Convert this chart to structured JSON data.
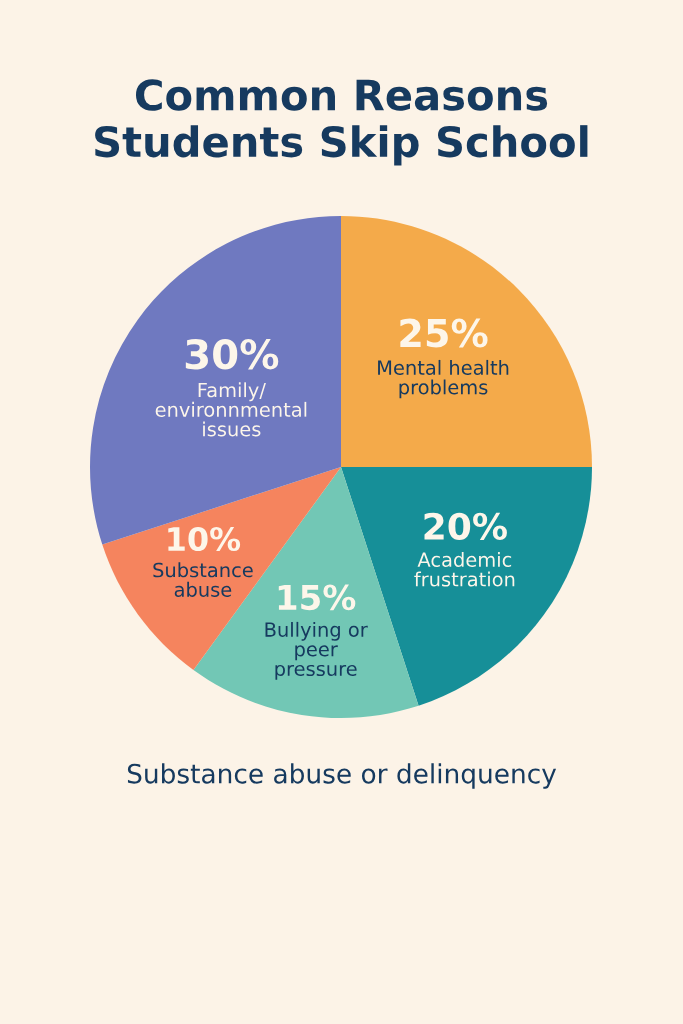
{
  "chart_data": {
    "type": "pie",
    "title": "Common Reasons\nStudents Skip School",
    "categories": [
      "Mental health\nproblems",
      "Academic\nfrustration",
      "Bullying or\npeer\npressure",
      "Substance\nabuse",
      "Family/\nenvironnmental\nissues"
    ],
    "values": [
      25,
      20,
      15,
      10,
      30
    ],
    "value_labels": [
      "25%",
      "20%",
      "15%",
      "10%",
      "30%"
    ],
    "colors": [
      "#f4aa4a",
      "#168f98",
      "#72c7b5",
      "#f5845e",
      "#6f79c0"
    ],
    "annotations": [
      "Substance abuse or delinquency"
    ]
  }
}
